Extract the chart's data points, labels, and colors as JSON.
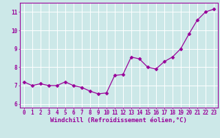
{
  "x": [
    0,
    1,
    2,
    3,
    4,
    5,
    6,
    7,
    8,
    9,
    10,
    11,
    12,
    13,
    14,
    15,
    16,
    17,
    18,
    19,
    20,
    21,
    22,
    23
  ],
  "y": [
    7.2,
    7.0,
    7.1,
    7.0,
    7.0,
    7.2,
    7.0,
    6.9,
    6.7,
    6.55,
    6.6,
    7.55,
    7.6,
    8.55,
    8.45,
    8.0,
    7.9,
    8.3,
    8.55,
    9.0,
    9.8,
    10.55,
    11.0,
    11.15
  ],
  "line_color": "#990099",
  "marker": "D",
  "marker_size": 2.5,
  "background_color": "#cce8e8",
  "grid_color": "#ffffff",
  "xlabel": "Windchill (Refroidissement éolien,°C)",
  "xlabel_color": "#990099",
  "tick_color": "#990099",
  "axis_color": "#990099",
  "ylim": [
    5.8,
    11.5
  ],
  "xlim": [
    -0.5,
    23.5
  ],
  "yticks": [
    6,
    7,
    8,
    9,
    10,
    11
  ],
  "xticks": [
    0,
    1,
    2,
    3,
    4,
    5,
    6,
    7,
    8,
    9,
    10,
    11,
    12,
    13,
    14,
    15,
    16,
    17,
    18,
    19,
    20,
    21,
    22,
    23
  ],
  "tick_fontsize": 5.5,
  "xlabel_fontsize": 6.5
}
